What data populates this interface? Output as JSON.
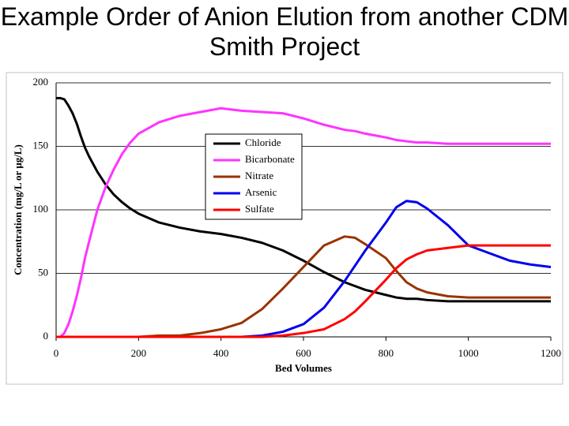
{
  "chart_data": {
    "type": "line",
    "title": "Example Order of Anion Elution from another CDM Smith Project",
    "x_label": "Bed Volumes",
    "y_label": "Concentration (mg/L or μg/L)",
    "x": [
      0,
      10,
      20,
      30,
      40,
      50,
      60,
      70,
      80,
      100,
      120,
      140,
      160,
      180,
      200,
      250,
      300,
      350,
      400,
      450,
      500,
      550,
      600,
      650,
      700,
      725,
      750,
      800,
      825,
      850,
      875,
      900,
      950,
      1000,
      1050,
      1100,
      1150,
      1200
    ],
    "series": [
      {
        "name": "Chloride",
        "color": "#000000",
        "values": [
          188,
          188,
          187,
          182,
          176,
          168,
          158,
          149,
          142,
          130,
          120,
          112,
          106,
          101,
          97,
          90,
          86,
          83,
          81,
          78,
          74,
          68,
          60,
          51,
          43,
          40,
          37,
          33,
          31,
          30,
          30,
          29,
          28,
          28,
          28,
          28,
          28,
          28
        ]
      },
      {
        "name": "Bicarbonate",
        "color": "#ff33ff",
        "values": [
          0,
          0,
          3,
          10,
          20,
          32,
          46,
          62,
          75,
          100,
          118,
          132,
          144,
          153,
          160,
          169,
          174,
          177,
          180,
          178,
          177,
          176,
          172,
          167,
          163,
          162,
          160,
          157,
          155,
          154,
          153,
          153,
          152,
          152,
          152,
          152,
          152,
          152
        ]
      },
      {
        "name": "Nitrate",
        "color": "#993300",
        "values": [
          0,
          0,
          0,
          0,
          0,
          0,
          0,
          0,
          0,
          0,
          0,
          0,
          0,
          0,
          0,
          1,
          1,
          3,
          6,
          11,
          22,
          38,
          55,
          72,
          79,
          78,
          73,
          62,
          52,
          43,
          38,
          35,
          32,
          31,
          31,
          31,
          31,
          31
        ]
      },
      {
        "name": "Arsenic",
        "color": "#0000ee",
        "values": [
          0,
          0,
          0,
          0,
          0,
          0,
          0,
          0,
          0,
          0,
          0,
          0,
          0,
          0,
          0,
          0,
          0,
          0,
          0,
          0,
          1,
          4,
          10,
          23,
          44,
          56,
          68,
          90,
          102,
          107,
          106,
          101,
          88,
          72,
          66,
          60,
          57,
          55
        ]
      },
      {
        "name": "Sulfate",
        "color": "#ff0000",
        "values": [
          0,
          0,
          0,
          0,
          0,
          0,
          0,
          0,
          0,
          0,
          0,
          0,
          0,
          0,
          0,
          0,
          0,
          0,
          0,
          0,
          0,
          1,
          3,
          6,
          14,
          20,
          28,
          45,
          54,
          61,
          65,
          68,
          70,
          72,
          72,
          72,
          72,
          72
        ]
      }
    ],
    "xlim": [
      0,
      1200
    ],
    "xticks": [
      0,
      200,
      400,
      600,
      800,
      1000,
      1200
    ],
    "ylim": [
      0,
      200
    ],
    "yticks": [
      0,
      50,
      100,
      150,
      200
    ],
    "grid": true,
    "legend": "upper center"
  }
}
